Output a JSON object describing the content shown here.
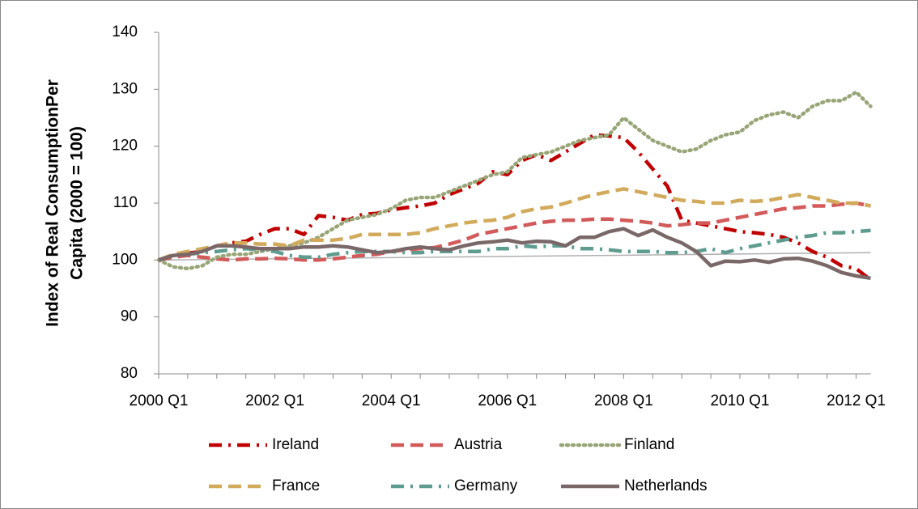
{
  "chart_data": {
    "type": "line",
    "ylabel": [
      "Index of Real ConsumptionPer",
      "Capita (2000 = 100)"
    ],
    "categories": [
      "2000 Q1",
      null,
      null,
      null,
      null,
      null,
      null,
      null,
      "2002 Q1",
      null,
      null,
      null,
      null,
      null,
      null,
      null,
      "2004 Q1",
      null,
      null,
      null,
      null,
      null,
      null,
      null,
      "2006 Q1",
      null,
      null,
      null,
      null,
      null,
      null,
      null,
      "2008 Q1",
      null,
      null,
      null,
      null,
      null,
      null,
      null,
      "2010 Q1",
      null,
      null,
      null,
      null,
      null,
      null,
      null,
      "2012 Q1",
      null
    ],
    "ylim": [
      80,
      140
    ],
    "yticks": [
      80,
      90,
      100,
      110,
      120,
      130,
      140
    ],
    "grid": false,
    "series": [
      {
        "name": "Ireland",
        "color": "#c00000",
        "dash": "dash-dot",
        "values": [
          100,
          100.8,
          101.2,
          101.5,
          102.5,
          103,
          103.3,
          104.5,
          105.5,
          105.5,
          104.5,
          107.8,
          107.5,
          107,
          108,
          108.2,
          108.8,
          109.2,
          109.5,
          110,
          111.5,
          112.5,
          113.5,
          115.5,
          115,
          117.5,
          118.5,
          117.5,
          119,
          120.5,
          122,
          121.8,
          121.5,
          119,
          116,
          113,
          107,
          106.5,
          106,
          105.5,
          105,
          104.8,
          104.5,
          104,
          103,
          101.5,
          100.5,
          99,
          98.5,
          96.5
        ]
      },
      {
        "name": "Austria",
        "color": "#d25a5a",
        "dash": "dash",
        "values": [
          100,
          100.5,
          100.8,
          100.5,
          100.2,
          100,
          100.2,
          100.2,
          100.3,
          100.2,
          100,
          100,
          100.2,
          100.5,
          100.8,
          101,
          101.5,
          101.8,
          102,
          102.2,
          102.8,
          103.5,
          104.5,
          105,
          105.5,
          106,
          106.5,
          106.8,
          107,
          107,
          107.2,
          107.2,
          107,
          106.8,
          106.5,
          106,
          106.2,
          106.5,
          106.5,
          107,
          107.5,
          108,
          108.5,
          109,
          109.2,
          109.5,
          109.5,
          109.8,
          110,
          109.5
        ]
      },
      {
        "name": "Finland",
        "color": "#98a577",
        "dash": "dot",
        "values": [
          100,
          98.8,
          98.5,
          99,
          100.5,
          101,
          101,
          101.5,
          102,
          102.5,
          103,
          104,
          105.5,
          107,
          107.5,
          108,
          109,
          110.5,
          111,
          111,
          112,
          113,
          114,
          115,
          115.5,
          118,
          118.5,
          119,
          120,
          121,
          121.5,
          122,
          125,
          123,
          121,
          120,
          119,
          119.5,
          121,
          122,
          122.5,
          124.5,
          125.5,
          126,
          125,
          127,
          128,
          128,
          129.5,
          127
        ]
      },
      {
        "name": "France",
        "color": "#d2aa5c",
        "dash": "dash",
        "values": [
          100,
          101,
          101.5,
          102,
          102.5,
          103,
          103,
          102.8,
          102.8,
          102.5,
          103.5,
          103.5,
          103.5,
          103.8,
          104.5,
          104.5,
          104.5,
          104.5,
          104.8,
          105.5,
          106,
          106.5,
          106.8,
          107,
          107.5,
          108.5,
          109,
          109.3,
          110,
          110.8,
          111.5,
          112,
          112.5,
          112,
          111.5,
          111,
          110.5,
          110.3,
          110,
          110,
          110.5,
          110.3,
          110.5,
          111,
          111.5,
          111,
          110.5,
          110,
          110,
          109.5
        ]
      },
      {
        "name": "Germany",
        "color": "#5e9c8f",
        "dash": "dash-dot",
        "values": [
          100,
          100.8,
          101,
          101.3,
          101.5,
          101.8,
          102,
          101.8,
          101.5,
          100.8,
          100.5,
          100.5,
          101,
          101.3,
          101.5,
          101.5,
          101.5,
          101.3,
          101.3,
          101.5,
          101.5,
          101.5,
          101.5,
          102,
          102,
          102.5,
          102.3,
          102.5,
          102.5,
          102,
          102,
          101.8,
          101.5,
          101.5,
          101.5,
          101.3,
          101.3,
          101.5,
          102,
          101.3,
          102,
          102.5,
          103,
          103.5,
          104,
          104.3,
          104.8,
          104.8,
          105,
          105.2
        ]
      },
      {
        "name": "Netherlands",
        "color": "#7a6868",
        "dash": "solid",
        "values": [
          100,
          100.8,
          101,
          101.5,
          102.5,
          102.5,
          102.3,
          102,
          102,
          102,
          102.3,
          102.3,
          102.5,
          102.3,
          101.8,
          101.3,
          101.5,
          102,
          102.3,
          102,
          101.8,
          102.5,
          103,
          103.2,
          103.5,
          103,
          103.3,
          103.2,
          102.5,
          104,
          104,
          105,
          105.5,
          104.3,
          105.3,
          104,
          103,
          101.5,
          99,
          99.8,
          99.7,
          100,
          99.6,
          100.2,
          100.3,
          99.8,
          99,
          97.8,
          97.2,
          96.8
        ]
      }
    ],
    "trend_line": {
      "color": "#b0b0b0",
      "values": [
        100,
        101.3
      ]
    }
  }
}
